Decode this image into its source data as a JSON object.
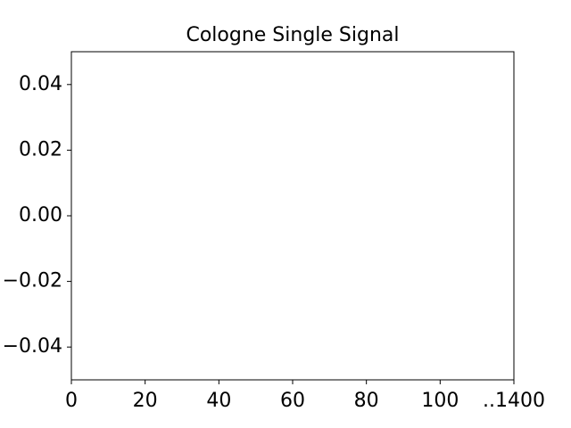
{
  "chart_data": {
    "type": "line",
    "title": "Cologne Single Signal",
    "xlim": [
      0,
      120
    ],
    "xticks": [
      0,
      20,
      40,
      60,
      80,
      100,
      {
        "value": 120,
        "label": "..1400"
      }
    ],
    "ylim": [
      -0.05,
      0.05
    ],
    "yticks": [
      {
        "value": -0.04,
        "label": "−0.04"
      },
      {
        "value": -0.02,
        "label": "−0.02"
      },
      {
        "value": 0,
        "label": "0.00"
      },
      0.02,
      0.04
    ]
  }
}
